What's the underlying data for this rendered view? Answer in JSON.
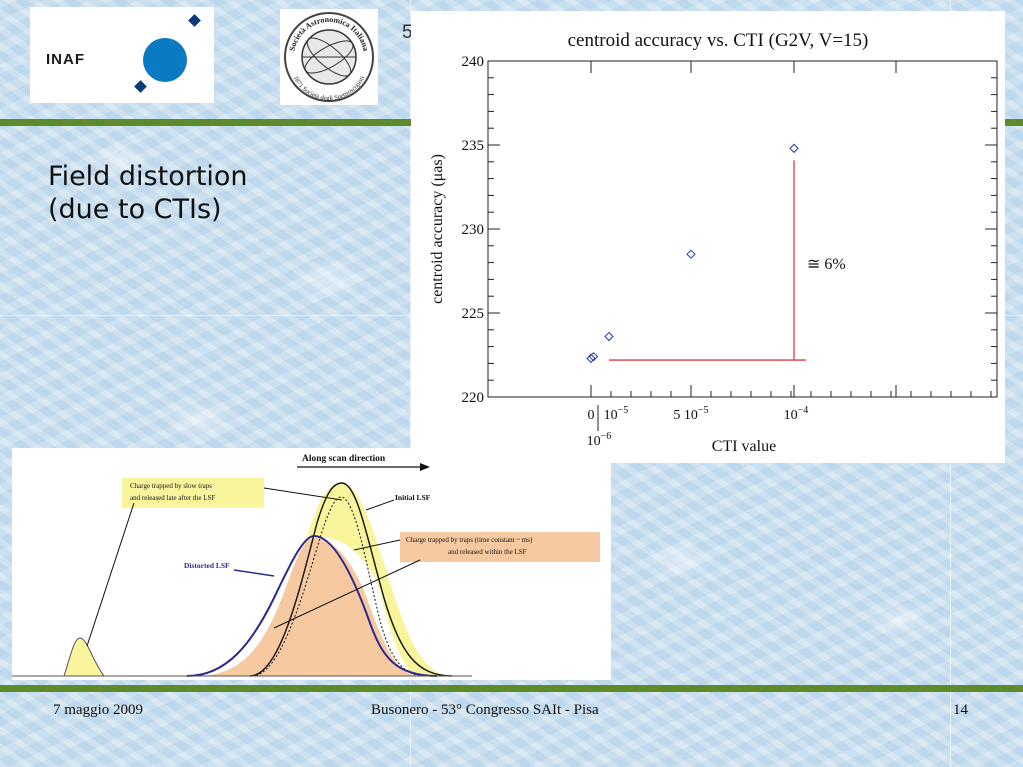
{
  "slide": {
    "title_line1": "Field distortion",
    "title_line2": "(due to CTIs)"
  },
  "logos": {
    "inaf_text": "INAF",
    "sait_top_text": "Società Astronomica Italiana",
    "sait_bottom_text": "1871 Società degli Spettroscopisti",
    "covered_title_fragment": "5"
  },
  "chart_data": {
    "type": "scatter",
    "title": "centroid accuracy vs. CTI (G2V, V=15)",
    "xlabel": "CTI value",
    "ylabel": "centroid accuracy (μas)",
    "ylim": [
      220,
      240
    ],
    "yticks": [
      "220",
      "225",
      "230",
      "235",
      "240"
    ],
    "xtick_labels": [
      {
        "base": "0",
        "exp": ""
      },
      {
        "base": "10",
        "exp": "−5"
      },
      {
        "base": "5 10",
        "exp": "−5"
      },
      {
        "base": "10",
        "exp": "−4"
      }
    ],
    "xtick_label_extra": {
      "base": "10",
      "exp": "−6"
    },
    "points": [
      {
        "x": 0,
        "y": 222.3
      },
      {
        "x": 1e-06,
        "y": 222.4
      },
      {
        "x": 1e-05,
        "y": 223.6
      },
      {
        "x": 5e-05,
        "y": 228.5
      },
      {
        "x": 0.0001,
        "y": 234.8
      }
    ],
    "baseline_y": 222.2,
    "annotation": "≅ 6%",
    "marker_color": "#2233cc",
    "line_color": "#e23a3a"
  },
  "diagram": {
    "direction_label": "Along scan direction",
    "slow_traps_label_1": "Charge trapped by slow traps",
    "slow_traps_label_2": "and released late after the LSF",
    "initial_lsf_label": "Initial LSF",
    "traps_label_1": "Charge trapped by traps (time constant ~ ms)",
    "traps_label_2": "and released within the LSF",
    "distorted_lsf_label": "Distorted LSF"
  },
  "footer": {
    "date": "7 maggio 2009",
    "center": "Busonero  -  53° Congresso SAIt - Pisa",
    "page": "14"
  },
  "colors": {
    "green_bar": "#5d8a2a",
    "inaf_blue": "#0a7bc2",
    "yellow_fill": "#f8f59c",
    "orange_fill": "#f7c9a0",
    "distorted_line": "#2b2a8c"
  }
}
